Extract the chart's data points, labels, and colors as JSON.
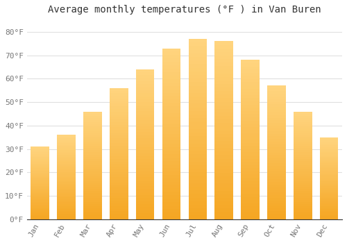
{
  "title": "Average monthly temperatures (°F ) in Van Buren",
  "months": [
    "Jan",
    "Feb",
    "Mar",
    "Apr",
    "May",
    "Jun",
    "Jul",
    "Aug",
    "Sep",
    "Oct",
    "Nov",
    "Dec"
  ],
  "values": [
    31,
    36,
    46,
    56,
    64,
    73,
    77,
    76,
    68,
    57,
    46,
    35
  ],
  "bar_color_bottom": "#F5A623",
  "bar_color_top": "#FFD580",
  "background_color": "#FFFFFF",
  "grid_color": "#E0E0E0",
  "text_color": "#777777",
  "ylim": [
    0,
    85
  ],
  "yticks": [
    0,
    10,
    20,
    30,
    40,
    50,
    60,
    70,
    80
  ],
  "ytick_labels": [
    "0°F",
    "10°F",
    "20°F",
    "30°F",
    "40°F",
    "50°F",
    "60°F",
    "70°F",
    "80°F"
  ],
  "title_fontsize": 10,
  "tick_fontsize": 8,
  "font_family": "monospace",
  "bar_width": 0.7
}
